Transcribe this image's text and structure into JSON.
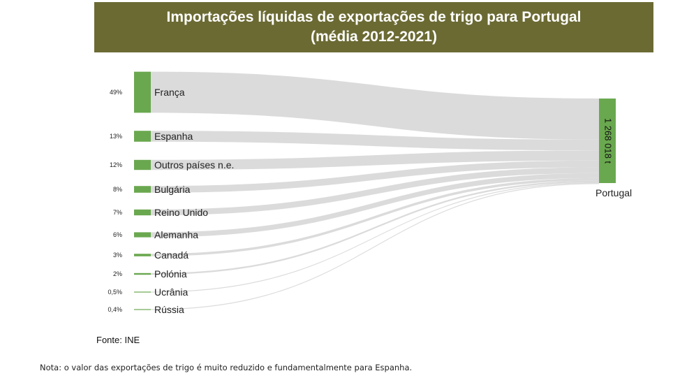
{
  "title_line1": "Importações líquidas de exportações de trigo para Portugal",
  "title_line2": "(média 2012-2021)",
  "source": "Fonte: INE",
  "note": "Nota: o valor das exportações de trigo é muito reduzido e fundamentalmente para Espanha.",
  "colors": {
    "node": "#6aa84f",
    "link": "#d9d9d9",
    "banner": "#6b6a33"
  },
  "chart_data": {
    "type": "sankey",
    "target": {
      "name": "Portugal",
      "value_label": "1 268 018 t"
    },
    "sources": [
      {
        "name": "França",
        "pct_label": "49%",
        "share": 49
      },
      {
        "name": "Espanha",
        "pct_label": "13%",
        "share": 13
      },
      {
        "name": "Outros países n.e.",
        "pct_label": "12%",
        "share": 12
      },
      {
        "name": "Bulgária",
        "pct_label": "8%",
        "share": 8
      },
      {
        "name": "Reino Unido",
        "pct_label": "7%",
        "share": 7
      },
      {
        "name": "Alemanha",
        "pct_label": "6%",
        "share": 6
      },
      {
        "name": "Canadá",
        "pct_label": "3%",
        "share": 3
      },
      {
        "name": "Polónia",
        "pct_label": "2%",
        "share": 2
      },
      {
        "name": "Ucrânia",
        "pct_label": "0,5%",
        "share": 0.5
      },
      {
        "name": "Rússia",
        "pct_label": "0,4%",
        "share": 0.4
      }
    ]
  }
}
